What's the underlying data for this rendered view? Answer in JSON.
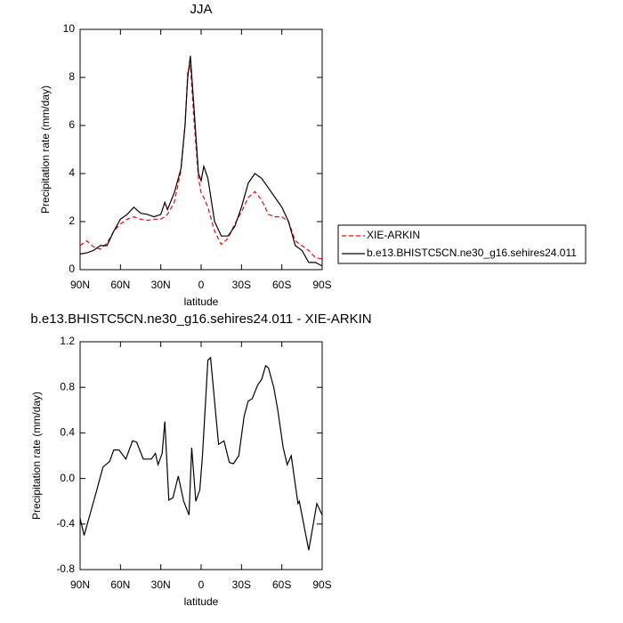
{
  "chart_data": [
    {
      "type": "line",
      "title": "JJA",
      "x_label": "latitude",
      "y_label": "Precipitation rate (mm/day)",
      "x": [
        90,
        85,
        80,
        75,
        70,
        65,
        60,
        55,
        50,
        45,
        40,
        35,
        30,
        27,
        25,
        20,
        15,
        12,
        10,
        8,
        5,
        2,
        0,
        -2,
        -5,
        -10,
        -15,
        -20,
        -25,
        -30,
        -35,
        -40,
        -45,
        -50,
        -55,
        -60,
        -65,
        -70,
        -75,
        -80,
        -85,
        -90
      ],
      "series": [
        {
          "name": "XIE-ARKIN",
          "color": "#ff0000",
          "dashed": true,
          "values": [
            1.0,
            1.2,
            0.95,
            0.85,
            1.1,
            1.6,
            1.9,
            2.1,
            2.2,
            2.1,
            2.05,
            2.1,
            2.1,
            2.2,
            2.3,
            2.8,
            4.1,
            6.0,
            8.2,
            8.5,
            6.0,
            3.8,
            3.2,
            3.0,
            2.6,
            1.6,
            1.05,
            1.3,
            1.9,
            2.4,
            3.0,
            3.25,
            2.9,
            2.3,
            2.2,
            2.2,
            2.0,
            1.2,
            1.0,
            0.8,
            0.5,
            0.45
          ]
        },
        {
          "name": "b.e13.BHISTC5CN.ne30_g16.sehires24.011",
          "color": "#000000",
          "dashed": false,
          "values": [
            0.65,
            0.7,
            0.8,
            1.0,
            1.0,
            1.6,
            2.1,
            2.3,
            2.6,
            2.35,
            2.3,
            2.2,
            2.3,
            2.8,
            2.5,
            3.2,
            4.2,
            6.0,
            8.0,
            8.9,
            6.5,
            4.0,
            3.7,
            4.3,
            3.8,
            2.0,
            1.4,
            1.4,
            1.8,
            2.6,
            3.6,
            4.0,
            3.8,
            3.4,
            3.0,
            2.6,
            2.0,
            1.0,
            0.8,
            0.3,
            0.3,
            0.15
          ]
        }
      ],
      "xlim": [
        90,
        -90
      ],
      "xticks": [
        {
          "value": 90,
          "label": "90N"
        },
        {
          "value": 60,
          "label": "60N"
        },
        {
          "value": 30,
          "label": "30N"
        },
        0,
        {
          "value": -30,
          "label": "30S"
        },
        {
          "value": -60,
          "label": "60S"
        },
        {
          "value": -90,
          "label": "90S"
        }
      ],
      "ylim": [
        0,
        10
      ],
      "yticks": [
        0,
        2,
        4,
        6,
        8,
        10
      ],
      "legend": "right"
    },
    {
      "type": "line",
      "title": "b.e13.BHISTC5CN.ne30_g16.sehires24.011 - XIE-ARKIN",
      "x_label": "latitude",
      "y_label": "Precipitation rate (mm/day)",
      "x": [
        90,
        87,
        78,
        73,
        68,
        65,
        61,
        56,
        51,
        48,
        43,
        37,
        34,
        32,
        29,
        27,
        24,
        21,
        17,
        13,
        9,
        7,
        4,
        1,
        -1,
        -5,
        -7,
        -11,
        -13,
        -17,
        -21,
        -24,
        -28,
        -32,
        -35,
        -38,
        -42,
        -45,
        -48,
        -50,
        -54,
        -57,
        -61,
        -64,
        -67,
        -72,
        -73,
        -80,
        -86,
        -90
      ],
      "values": [
        -0.35,
        -0.5,
        -0.12,
        0.1,
        0.15,
        0.25,
        0.25,
        0.17,
        0.33,
        0.32,
        0.17,
        0.17,
        0.22,
        0.12,
        0.22,
        0.5,
        -0.19,
        -0.17,
        0.02,
        -0.2,
        -0.32,
        0.27,
        -0.2,
        -0.1,
        0.2,
        1.04,
        1.06,
        0.55,
        0.3,
        0.33,
        0.14,
        0.13,
        0.2,
        0.55,
        0.68,
        0.7,
        0.82,
        0.87,
        0.99,
        0.97,
        0.8,
        0.6,
        0.27,
        0.12,
        0.2,
        -0.22,
        -0.2,
        -0.63,
        -0.22,
        -0.32
      ],
      "color": "#000000",
      "xlim": [
        90,
        -90
      ],
      "xticks": [
        {
          "value": 90,
          "label": "90N"
        },
        {
          "value": 60,
          "label": "60N"
        },
        {
          "value": 30,
          "label": "30N"
        },
        0,
        {
          "value": -30,
          "label": "30S"
        },
        {
          "value": -60,
          "label": "60S"
        },
        {
          "value": -90,
          "label": "90S"
        }
      ],
      "ylim": [
        -0.8,
        1.2
      ],
      "yticks": [
        {
          "value": -0.8,
          "label": "-0.8"
        },
        -0.4,
        {
          "value": 0,
          "label": "0.0"
        },
        0.4,
        0.8,
        1.2
      ]
    }
  ]
}
